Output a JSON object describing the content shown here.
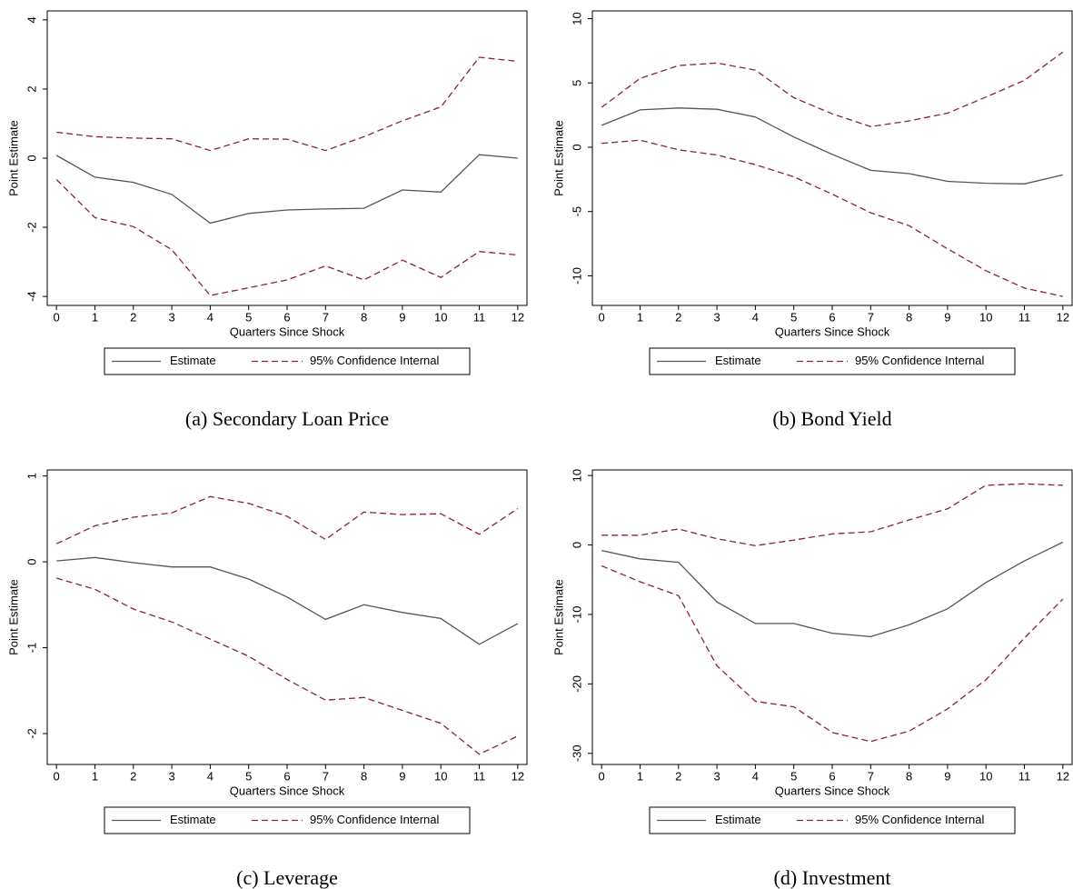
{
  "chart_data": [
    {
      "type": "line",
      "caption": "(a) Secondary Loan Price",
      "xlabel": "Quarters Since Shock",
      "ylabel": "Point Estimate",
      "x": [
        0,
        1,
        2,
        3,
        4,
        5,
        6,
        7,
        8,
        9,
        10,
        11,
        12
      ],
      "xlim": [
        -0.24,
        12.24
      ],
      "xticks": [
        0,
        1,
        2,
        3,
        4,
        5,
        6,
        7,
        8,
        9,
        10,
        11,
        12
      ],
      "ylim": [
        -4.26,
        4.26
      ],
      "yticks": [
        -4,
        -2,
        0,
        2,
        4
      ],
      "series": [
        {
          "name": "Estimate",
          "color": "#555555",
          "values": [
            0.08,
            -0.55,
            -0.7,
            -1.05,
            -1.88,
            -1.6,
            -1.5,
            -1.47,
            -1.45,
            -0.92,
            -0.98,
            0.1,
            0.0
          ]
        },
        {
          "name": "95% Confidence Internal",
          "color": "#8c2332",
          "upper": [
            0.75,
            0.62,
            0.58,
            0.56,
            0.22,
            0.56,
            0.55,
            0.22,
            0.62,
            1.08,
            1.48,
            2.92,
            2.8
          ],
          "lower": [
            -0.62,
            -1.72,
            -1.98,
            -2.65,
            -3.97,
            -3.75,
            -3.52,
            -3.12,
            -3.52,
            -2.95,
            -3.45,
            -2.7,
            -2.8
          ]
        }
      ]
    },
    {
      "type": "line",
      "caption": "(b) Bond Yield",
      "xlabel": "Quarters Since Shock",
      "ylabel": "Point Estimate",
      "x": [
        0,
        1,
        2,
        3,
        4,
        5,
        6,
        7,
        8,
        9,
        10,
        11,
        12
      ],
      "xlim": [
        -0.24,
        12.24
      ],
      "xticks": [
        0,
        1,
        2,
        3,
        4,
        5,
        6,
        7,
        8,
        9,
        10,
        11,
        12
      ],
      "ylim": [
        -12.3,
        10.6
      ],
      "yticks": [
        -10,
        -5,
        0,
        5,
        10
      ],
      "series": [
        {
          "name": "Estimate",
          "color": "#555555",
          "values": [
            1.7,
            2.9,
            3.05,
            2.95,
            2.35,
            0.8,
            -0.55,
            -1.8,
            -2.05,
            -2.65,
            -2.8,
            -2.85,
            -2.15
          ]
        },
        {
          "name": "95% Confidence Internal",
          "color": "#8c2332",
          "upper": [
            3.1,
            5.35,
            6.35,
            6.55,
            6.0,
            3.85,
            2.6,
            1.6,
            2.05,
            2.65,
            3.9,
            5.2,
            7.4
          ],
          "lower": [
            0.3,
            0.55,
            -0.2,
            -0.6,
            -1.35,
            -2.3,
            -3.65,
            -5.1,
            -6.1,
            -7.9,
            -9.6,
            -10.95,
            -11.6
          ]
        }
      ]
    },
    {
      "type": "line",
      "caption": "(c) Leverage",
      "xlabel": "Quarters Since Shock",
      "ylabel": "Point Estimate",
      "x": [
        0,
        1,
        2,
        3,
        4,
        5,
        6,
        7,
        8,
        9,
        10,
        11,
        12
      ],
      "xlim": [
        -0.24,
        12.24
      ],
      "xticks": [
        0,
        1,
        2,
        3,
        4,
        5,
        6,
        7,
        8,
        9,
        10,
        11,
        12
      ],
      "ylim": [
        -2.36,
        1.07
      ],
      "yticks": [
        -2,
        -1,
        0,
        1
      ],
      "series": [
        {
          "name": "Estimate",
          "color": "#555555",
          "values": [
            0.01,
            0.05,
            -0.01,
            -0.06,
            -0.06,
            -0.2,
            -0.41,
            -0.67,
            -0.5,
            -0.59,
            -0.66,
            -0.96,
            -0.72
          ]
        },
        {
          "name": "95% Confidence Internal",
          "color": "#8c2332",
          "upper": [
            0.21,
            0.42,
            0.52,
            0.57,
            0.76,
            0.68,
            0.53,
            0.26,
            0.58,
            0.55,
            0.56,
            0.32,
            0.62
          ],
          "lower": [
            -0.19,
            -0.32,
            -0.55,
            -0.7,
            -0.9,
            -1.1,
            -1.37,
            -1.61,
            -1.58,
            -1.73,
            -1.88,
            -2.24,
            -2.03
          ]
        }
      ]
    },
    {
      "type": "line",
      "caption": "(d) Investment",
      "xlabel": "Quarters Since Shock",
      "ylabel": "Point Estimate",
      "x": [
        0,
        1,
        2,
        3,
        4,
        5,
        6,
        7,
        8,
        9,
        10,
        11,
        12
      ],
      "xlim": [
        -0.24,
        12.24
      ],
      "xticks": [
        0,
        1,
        2,
        3,
        4,
        5,
        6,
        7,
        8,
        9,
        10,
        11,
        12
      ],
      "ylim": [
        -31.6,
        10.8
      ],
      "yticks": [
        -30,
        -20,
        -10,
        0,
        10
      ],
      "series": [
        {
          "name": "Estimate",
          "color": "#555555",
          "values": [
            -0.8,
            -2.0,
            -2.5,
            -8.2,
            -11.3,
            -11.3,
            -12.7,
            -13.2,
            -11.5,
            -9.2,
            -5.4,
            -2.3,
            0.4
          ]
        },
        {
          "name": "95% Confidence Internal",
          "color": "#8c2332",
          "upper": [
            1.4,
            1.4,
            2.3,
            0.9,
            -0.1,
            0.7,
            1.6,
            1.9,
            3.6,
            5.2,
            8.6,
            8.8,
            8.6
          ],
          "lower": [
            -3.0,
            -5.3,
            -7.3,
            -17.4,
            -22.5,
            -23.3,
            -27.0,
            -28.3,
            -26.8,
            -23.6,
            -19.4,
            -13.4,
            -7.8
          ]
        }
      ]
    }
  ]
}
